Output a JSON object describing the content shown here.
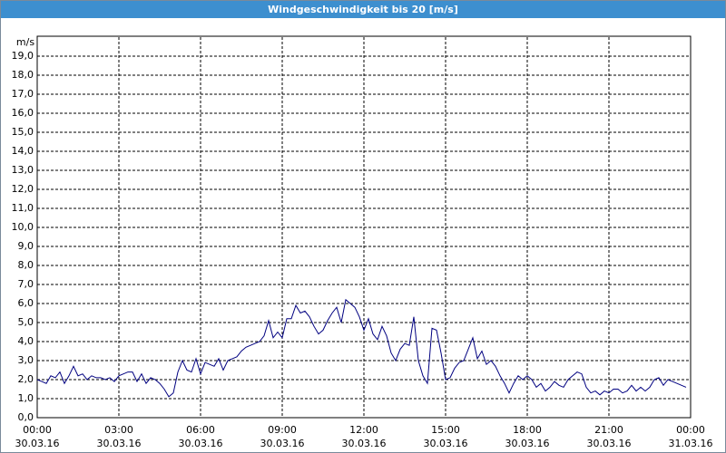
{
  "chart_data": {
    "type": "line",
    "title": "Windgeschwindigkeit bis 20 [m/s]",
    "ylabel": "m/s",
    "color": "#000080",
    "grid": true,
    "ylim": [
      0,
      20
    ],
    "yticks": [
      {
        "value": 0,
        "label": "0,0"
      },
      {
        "value": 1,
        "label": "1,0"
      },
      {
        "value": 2,
        "label": "2,0"
      },
      {
        "value": 3,
        "label": "3,0"
      },
      {
        "value": 4,
        "label": "4,0"
      },
      {
        "value": 5,
        "label": "5,0"
      },
      {
        "value": 6,
        "label": "6,0"
      },
      {
        "value": 7,
        "label": "7,0"
      },
      {
        "value": 8,
        "label": "8,0"
      },
      {
        "value": 9,
        "label": "9,0"
      },
      {
        "value": 10,
        "label": "10,0"
      },
      {
        "value": 11,
        "label": "11,0"
      },
      {
        "value": 12,
        "label": "12,0"
      },
      {
        "value": 13,
        "label": "13,0"
      },
      {
        "value": 14,
        "label": "14,0"
      },
      {
        "value": 15,
        "label": "15,0"
      },
      {
        "value": 16,
        "label": "16,0"
      },
      {
        "value": 17,
        "label": "17,0"
      },
      {
        "value": 18,
        "label": "18,0"
      },
      {
        "value": 19,
        "label": "19,0"
      }
    ],
    "xlim": [
      0,
      1440
    ],
    "xticks": [
      {
        "value": 0,
        "label": "00:00"
      },
      {
        "value": 180,
        "label": "03:00"
      },
      {
        "value": 360,
        "label": "06:00"
      },
      {
        "value": 540,
        "label": "09:00"
      },
      {
        "value": 720,
        "label": "12:00"
      },
      {
        "value": 900,
        "label": "15:00"
      },
      {
        "value": 1080,
        "label": "18:00"
      },
      {
        "value": 1260,
        "label": "21:00"
      },
      {
        "value": 1440,
        "label": "00:00"
      }
    ],
    "xtick_dates": [
      "30.03.16",
      "30.03.16",
      "30.03.16",
      "30.03.16",
      "30.03.16",
      "30.03.16",
      "30.03.16",
      "30.03.16",
      "31.03.16"
    ],
    "x": [
      0,
      10,
      20,
      30,
      40,
      50,
      60,
      70,
      80,
      90,
      100,
      110,
      120,
      130,
      140,
      150,
      160,
      170,
      180,
      190,
      200,
      210,
      220,
      230,
      240,
      250,
      260,
      270,
      280,
      290,
      300,
      310,
      320,
      330,
      340,
      350,
      360,
      370,
      380,
      390,
      400,
      410,
      420,
      430,
      440,
      450,
      460,
      470,
      480,
      490,
      500,
      510,
      520,
      530,
      540,
      550,
      560,
      570,
      580,
      590,
      600,
      610,
      620,
      630,
      640,
      650,
      660,
      670,
      680,
      690,
      700,
      710,
      720,
      730,
      740,
      750,
      760,
      770,
      780,
      790,
      800,
      810,
      820,
      830,
      840,
      850,
      860,
      870,
      880,
      890,
      900,
      910,
      920,
      930,
      940,
      950,
      960,
      970,
      980,
      990,
      1000,
      1010,
      1020,
      1030,
      1040,
      1050,
      1060,
      1070,
      1080,
      1090,
      1100,
      1110,
      1120,
      1130,
      1140,
      1150,
      1160,
      1170,
      1180,
      1190,
      1200,
      1210,
      1220,
      1230,
      1240,
      1250,
      1260,
      1270,
      1280,
      1290,
      1300,
      1310,
      1320,
      1330,
      1340,
      1350,
      1360,
      1370,
      1380,
      1390,
      1400,
      1410,
      1420,
      1430
    ],
    "values": [
      2.0,
      1.9,
      1.8,
      2.2,
      2.1,
      2.4,
      1.8,
      2.2,
      2.7,
      2.2,
      2.3,
      2.0,
      2.2,
      2.1,
      2.1,
      2.0,
      2.1,
      1.9,
      2.2,
      2.3,
      2.4,
      2.4,
      1.9,
      2.3,
      1.8,
      2.1,
      2.0,
      1.8,
      1.5,
      1.1,
      1.3,
      2.4,
      3.0,
      2.5,
      2.4,
      3.1,
      2.3,
      2.9,
      2.8,
      2.7,
      3.1,
      2.5,
      3.0,
      3.1,
      3.2,
      3.5,
      3.7,
      3.8,
      3.9,
      4.0,
      4.3,
      5.1,
      4.2,
      4.5,
      4.2,
      5.2,
      5.2,
      5.9,
      5.5,
      5.6,
      5.3,
      4.8,
      4.4,
      4.6,
      5.1,
      5.5,
      5.8,
      5.0,
      6.2,
      6.0,
      5.8,
      5.3,
      4.6,
      5.2,
      4.4,
      4.1,
      4.8,
      4.3,
      3.4,
      3.0,
      3.6,
      3.9,
      3.8,
      5.3,
      3.0,
      2.2,
      1.8,
      4.7,
      4.6,
      3.4,
      2.0,
      2.1,
      2.6,
      2.9,
      3.0,
      3.6,
      4.2,
      3.1,
      3.5,
      2.8,
      3.0,
      2.7,
      2.2,
      1.8,
      1.3,
      1.8,
      2.2,
      2.0,
      2.2,
      2.0,
      1.6,
      1.8,
      1.4,
      1.6,
      1.9,
      1.7,
      1.6,
      2.0,
      2.2,
      2.4,
      2.3,
      1.6,
      1.3,
      1.4,
      1.2,
      1.4,
      1.3,
      1.5,
      1.5,
      1.3,
      1.4,
      1.7,
      1.4,
      1.6,
      1.4,
      1.6,
      2.0,
      2.1,
      1.7,
      2.0,
      1.9,
      1.8,
      1.7,
      1.6
    ]
  }
}
